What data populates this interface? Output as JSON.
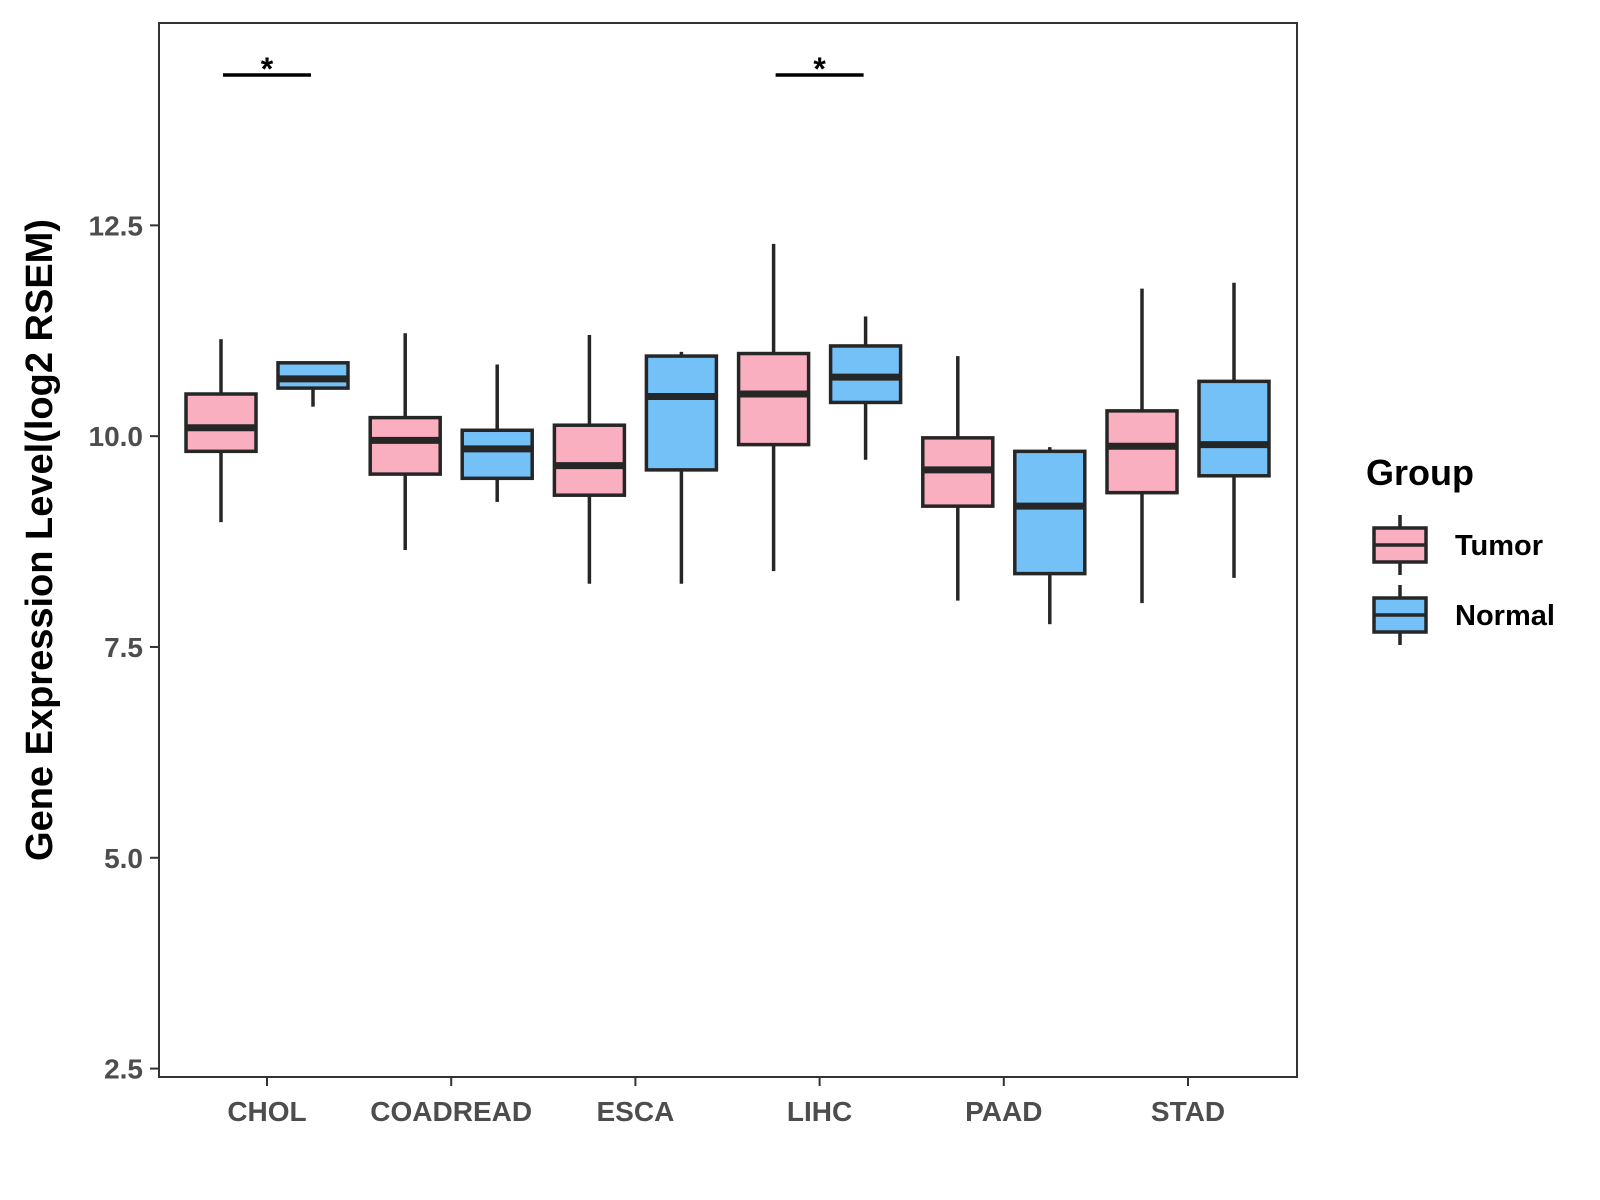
{
  "chart_data": {
    "type": "boxplot",
    "title": "",
    "xlabel": "",
    "ylabel": "Gene Expression Level(log2 RSEM)",
    "ylim": [
      2.4,
      14.9
    ],
    "yticks": [
      2.5,
      5.0,
      7.5,
      10.0,
      12.5
    ],
    "ytick_labels": [
      "2.5",
      "5.0",
      "7.5",
      "10.0",
      "12.5"
    ],
    "grid": false,
    "legend": {
      "title": "Group",
      "position": "right",
      "entries": [
        {
          "name": "Tumor",
          "color": "#F9AFC0"
        },
        {
          "name": "Normal",
          "color": "#74C1F8"
        }
      ]
    },
    "categories": [
      "CHOL",
      "COADREAD",
      "ESCA",
      "LIHC",
      "PAAD",
      "STAD"
    ],
    "series": [
      {
        "name": "Tumor",
        "color": "#F9AFC0",
        "boxes": [
          {
            "min": 8.98,
            "q1": 9.82,
            "median": 10.1,
            "q3": 10.5,
            "max": 11.15
          },
          {
            "min": 8.65,
            "q1": 9.55,
            "median": 9.95,
            "q3": 10.22,
            "max": 11.22
          },
          {
            "min": 8.25,
            "q1": 9.3,
            "median": 9.65,
            "q3": 10.13,
            "max": 11.2
          },
          {
            "min": 8.4,
            "q1": 9.9,
            "median": 10.5,
            "q3": 10.98,
            "max": 12.28
          },
          {
            "min": 8.05,
            "q1": 9.17,
            "median": 9.6,
            "q3": 9.98,
            "max": 10.95
          },
          {
            "min": 8.02,
            "q1": 9.33,
            "median": 9.88,
            "q3": 10.3,
            "max": 11.75
          }
        ]
      },
      {
        "name": "Normal",
        "color": "#74C1F8",
        "boxes": [
          {
            "min": 10.35,
            "q1": 10.57,
            "median": 10.68,
            "q3": 10.87,
            "max": 10.88
          },
          {
            "min": 9.22,
            "q1": 9.5,
            "median": 9.85,
            "q3": 10.07,
            "max": 10.85
          },
          {
            "min": 8.25,
            "q1": 9.6,
            "median": 10.47,
            "q3": 10.95,
            "max": 11.0
          },
          {
            "min": 9.72,
            "q1": 10.4,
            "median": 10.7,
            "q3": 11.07,
            "max": 11.42
          },
          {
            "min": 7.77,
            "q1": 8.37,
            "median": 9.17,
            "q3": 9.82,
            "max": 9.87
          },
          {
            "min": 8.32,
            "q1": 9.53,
            "median": 9.9,
            "q3": 10.65,
            "max": 11.82
          }
        ]
      }
    ],
    "annotations": [
      {
        "category": "CHOL",
        "text": "*"
      },
      {
        "category": "LIHC",
        "text": "*"
      }
    ]
  }
}
